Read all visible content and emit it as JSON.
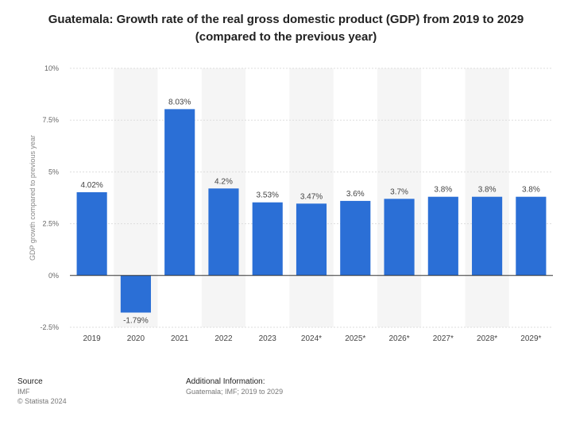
{
  "chart_data": {
    "type": "bar",
    "title_line1": "Guatemala: Growth rate of the real gross domestic product (GDP) from 2019 to 2029",
    "title_line2": "(compared to the previous year)",
    "ylabel": "GDP growth compared to previous year",
    "xlabel": "",
    "categories": [
      "2019",
      "2020",
      "2021",
      "2022",
      "2023",
      "2024*",
      "2025*",
      "2026*",
      "2027*",
      "2028*",
      "2029*"
    ],
    "values": [
      4.02,
      -1.79,
      8.03,
      4.2,
      3.53,
      3.47,
      3.6,
      3.7,
      3.8,
      3.8,
      3.8
    ],
    "data_labels": [
      "4.02%",
      "-1.79%",
      "8.03%",
      "4.2%",
      "3.53%",
      "3.47%",
      "3.6%",
      "3.7%",
      "3.8%",
      "3.8%",
      "3.8%"
    ],
    "ylim": [
      -2.5,
      10
    ],
    "yticks": [
      10,
      7.5,
      5,
      2.5,
      0,
      -2.5
    ],
    "ytick_labels": [
      "10%",
      "7.5%",
      "5%",
      "2.5%",
      "0%",
      "-2.5%"
    ],
    "grid": true,
    "bar_color": "#2b6fd6"
  },
  "footer": {
    "source_heading": "Source",
    "source_name": "IMF",
    "copyright": "© Statista 2024",
    "additional_heading": "Additional Information:",
    "additional_text": "Guatemala; IMF; 2019 to 2029"
  }
}
